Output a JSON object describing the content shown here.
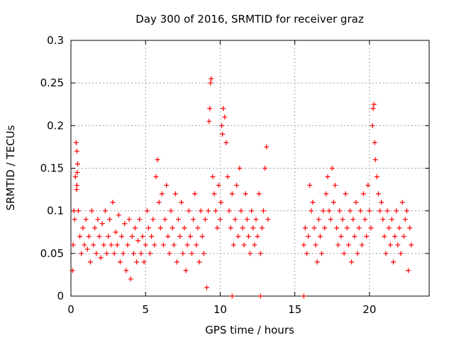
{
  "chart_data": {
    "type": "scatter",
    "title": "Day 300 of 2016, SRMTID for receiver graz",
    "xlabel": "GPS time / hours",
    "ylabel": "SRMTID / TECUs",
    "xlim": [
      0,
      24
    ],
    "ylim": [
      0,
      0.3
    ],
    "x_ticks": [
      0,
      5,
      10,
      15,
      20
    ],
    "x_tick_labels": [
      "0",
      "5",
      "10",
      "15",
      "20"
    ],
    "y_ticks": [
      0,
      0.05,
      0.1,
      0.15,
      0.2,
      0.25,
      0.3
    ],
    "y_tick_labels": [
      "0",
      "0.05",
      "0.1",
      "0.15",
      "0.2",
      "0.25",
      "0.3"
    ],
    "grid": true,
    "series": [
      {
        "name": "SRMTID",
        "color": "#ff0000",
        "marker": "plus",
        "x": [
          0.1,
          0.15,
          0.2,
          0.25,
          0.3,
          0.35,
          0.4,
          0.45,
          0.4,
          0.38,
          0.42,
          0.5,
          0.6,
          0.7,
          0.8,
          0.9,
          1.0,
          1.1,
          1.2,
          1.3,
          1.4,
          1.5,
          1.6,
          1.7,
          1.8,
          1.9,
          2.0,
          2.1,
          2.2,
          2.3,
          2.4,
          2.5,
          2.6,
          2.7,
          2.8,
          2.9,
          3.0,
          3.1,
          3.2,
          3.3,
          3.4,
          3.5,
          3.6,
          3.7,
          3.8,
          3.9,
          4.0,
          4.1,
          4.2,
          4.3,
          4.4,
          4.5,
          4.6,
          4.7,
          4.8,
          4.9,
          5.0,
          5.1,
          5.2,
          5.3,
          5.4,
          5.5,
          5.6,
          5.7,
          5.8,
          5.9,
          6.0,
          6.1,
          6.2,
          6.3,
          6.4,
          6.5,
          6.6,
          6.7,
          6.8,
          6.9,
          7.0,
          7.1,
          7.2,
          7.3,
          7.4,
          7.5,
          7.6,
          7.7,
          7.8,
          7.9,
          8.0,
          8.1,
          8.2,
          8.3,
          8.4,
          8.5,
          8.6,
          8.7,
          8.8,
          8.9,
          9.0,
          9.1,
          9.2,
          9.25,
          9.3,
          9.35,
          9.4,
          9.5,
          9.6,
          9.7,
          9.8,
          9.9,
          10.0,
          10.05,
          10.1,
          10.15,
          10.2,
          10.3,
          10.4,
          10.5,
          10.6,
          10.7,
          10.8,
          10.9,
          11.0,
          11.1,
          11.2,
          11.3,
          11.4,
          11.5,
          11.6,
          11.7,
          11.8,
          11.9,
          12.0,
          12.1,
          12.2,
          12.3,
          12.4,
          12.5,
          12.6,
          12.7,
          12.8,
          12.9,
          13.0,
          13.1,
          13.2,
          15.6,
          15.7,
          15.8,
          15.9,
          16.0,
          16.1,
          16.2,
          16.3,
          16.4,
          16.5,
          16.6,
          16.7,
          16.8,
          16.9,
          17.0,
          17.1,
          17.2,
          17.3,
          17.4,
          17.5,
          17.6,
          17.7,
          17.8,
          17.9,
          18.0,
          18.1,
          18.2,
          18.3,
          18.4,
          18.5,
          18.6,
          18.7,
          18.8,
          18.9,
          19.0,
          19.1,
          19.2,
          19.3,
          19.4,
          19.5,
          19.6,
          19.7,
          19.8,
          19.9,
          20.0,
          20.1,
          20.2,
          20.25,
          20.3,
          20.35,
          20.4,
          20.5,
          20.6,
          20.7,
          20.8,
          20.9,
          21.0,
          21.1,
          21.2,
          21.3,
          21.4,
          21.5,
          21.6,
          21.7,
          21.8,
          21.9,
          22.0,
          22.1,
          22.2,
          22.3,
          22.4,
          22.5,
          22.6,
          22.7,
          22.8,
          10.8,
          12.7,
          15.6
        ],
        "y": [
          0.03,
          0.06,
          0.1,
          0.09,
          0.14,
          0.18,
          0.17,
          0.155,
          0.13,
          0.125,
          0.145,
          0.1,
          0.07,
          0.05,
          0.08,
          0.06,
          0.09,
          0.055,
          0.07,
          0.04,
          0.1,
          0.06,
          0.08,
          0.05,
          0.09,
          0.07,
          0.045,
          0.085,
          0.06,
          0.1,
          0.05,
          0.07,
          0.09,
          0.06,
          0.11,
          0.05,
          0.075,
          0.06,
          0.095,
          0.04,
          0.07,
          0.05,
          0.085,
          0.03,
          0.06,
          0.09,
          0.02,
          0.07,
          0.05,
          0.08,
          0.04,
          0.065,
          0.09,
          0.05,
          0.07,
          0.04,
          0.06,
          0.1,
          0.08,
          0.05,
          0.07,
          0.09,
          0.06,
          0.14,
          0.16,
          0.11,
          0.08,
          0.12,
          0.06,
          0.09,
          0.13,
          0.07,
          0.05,
          0.1,
          0.08,
          0.06,
          0.12,
          0.04,
          0.09,
          0.07,
          0.11,
          0.05,
          0.08,
          0.03,
          0.06,
          0.1,
          0.07,
          0.05,
          0.09,
          0.12,
          0.06,
          0.08,
          0.04,
          0.1,
          0.07,
          0.05,
          0.09,
          0.01,
          0.1,
          0.205,
          0.22,
          0.25,
          0.255,
          0.14,
          0.12,
          0.1,
          0.08,
          0.13,
          0.09,
          0.11,
          0.2,
          0.19,
          0.22,
          0.21,
          0.18,
          0.14,
          0.1,
          0.08,
          0.12,
          0.06,
          0.09,
          0.13,
          0.07,
          0.15,
          0.1,
          0.08,
          0.06,
          0.12,
          0.09,
          0.07,
          0.05,
          0.1,
          0.08,
          0.06,
          0.09,
          0.07,
          0.12,
          0.05,
          0.08,
          0.1,
          0.15,
          0.175,
          0.09,
          0.06,
          0.08,
          0.05,
          0.07,
          0.13,
          0.1,
          0.11,
          0.08,
          0.06,
          0.04,
          0.09,
          0.07,
          0.05,
          0.1,
          0.08,
          0.12,
          0.14,
          0.1,
          0.09,
          0.15,
          0.11,
          0.13,
          0.08,
          0.06,
          0.1,
          0.07,
          0.09,
          0.05,
          0.12,
          0.08,
          0.06,
          0.1,
          0.04,
          0.09,
          0.07,
          0.11,
          0.05,
          0.08,
          0.1,
          0.06,
          0.12,
          0.09,
          0.07,
          0.13,
          0.1,
          0.08,
          0.2,
          0.22,
          0.225,
          0.18,
          0.16,
          0.14,
          0.12,
          0.1,
          0.11,
          0.09,
          0.07,
          0.05,
          0.1,
          0.08,
          0.06,
          0.09,
          0.04,
          0.07,
          0.1,
          0.06,
          0.08,
          0.05,
          0.11,
          0.07,
          0.09,
          0.1,
          0.03,
          0.08,
          0.06,
          0.0,
          0.0,
          0.0
        ]
      }
    ]
  }
}
